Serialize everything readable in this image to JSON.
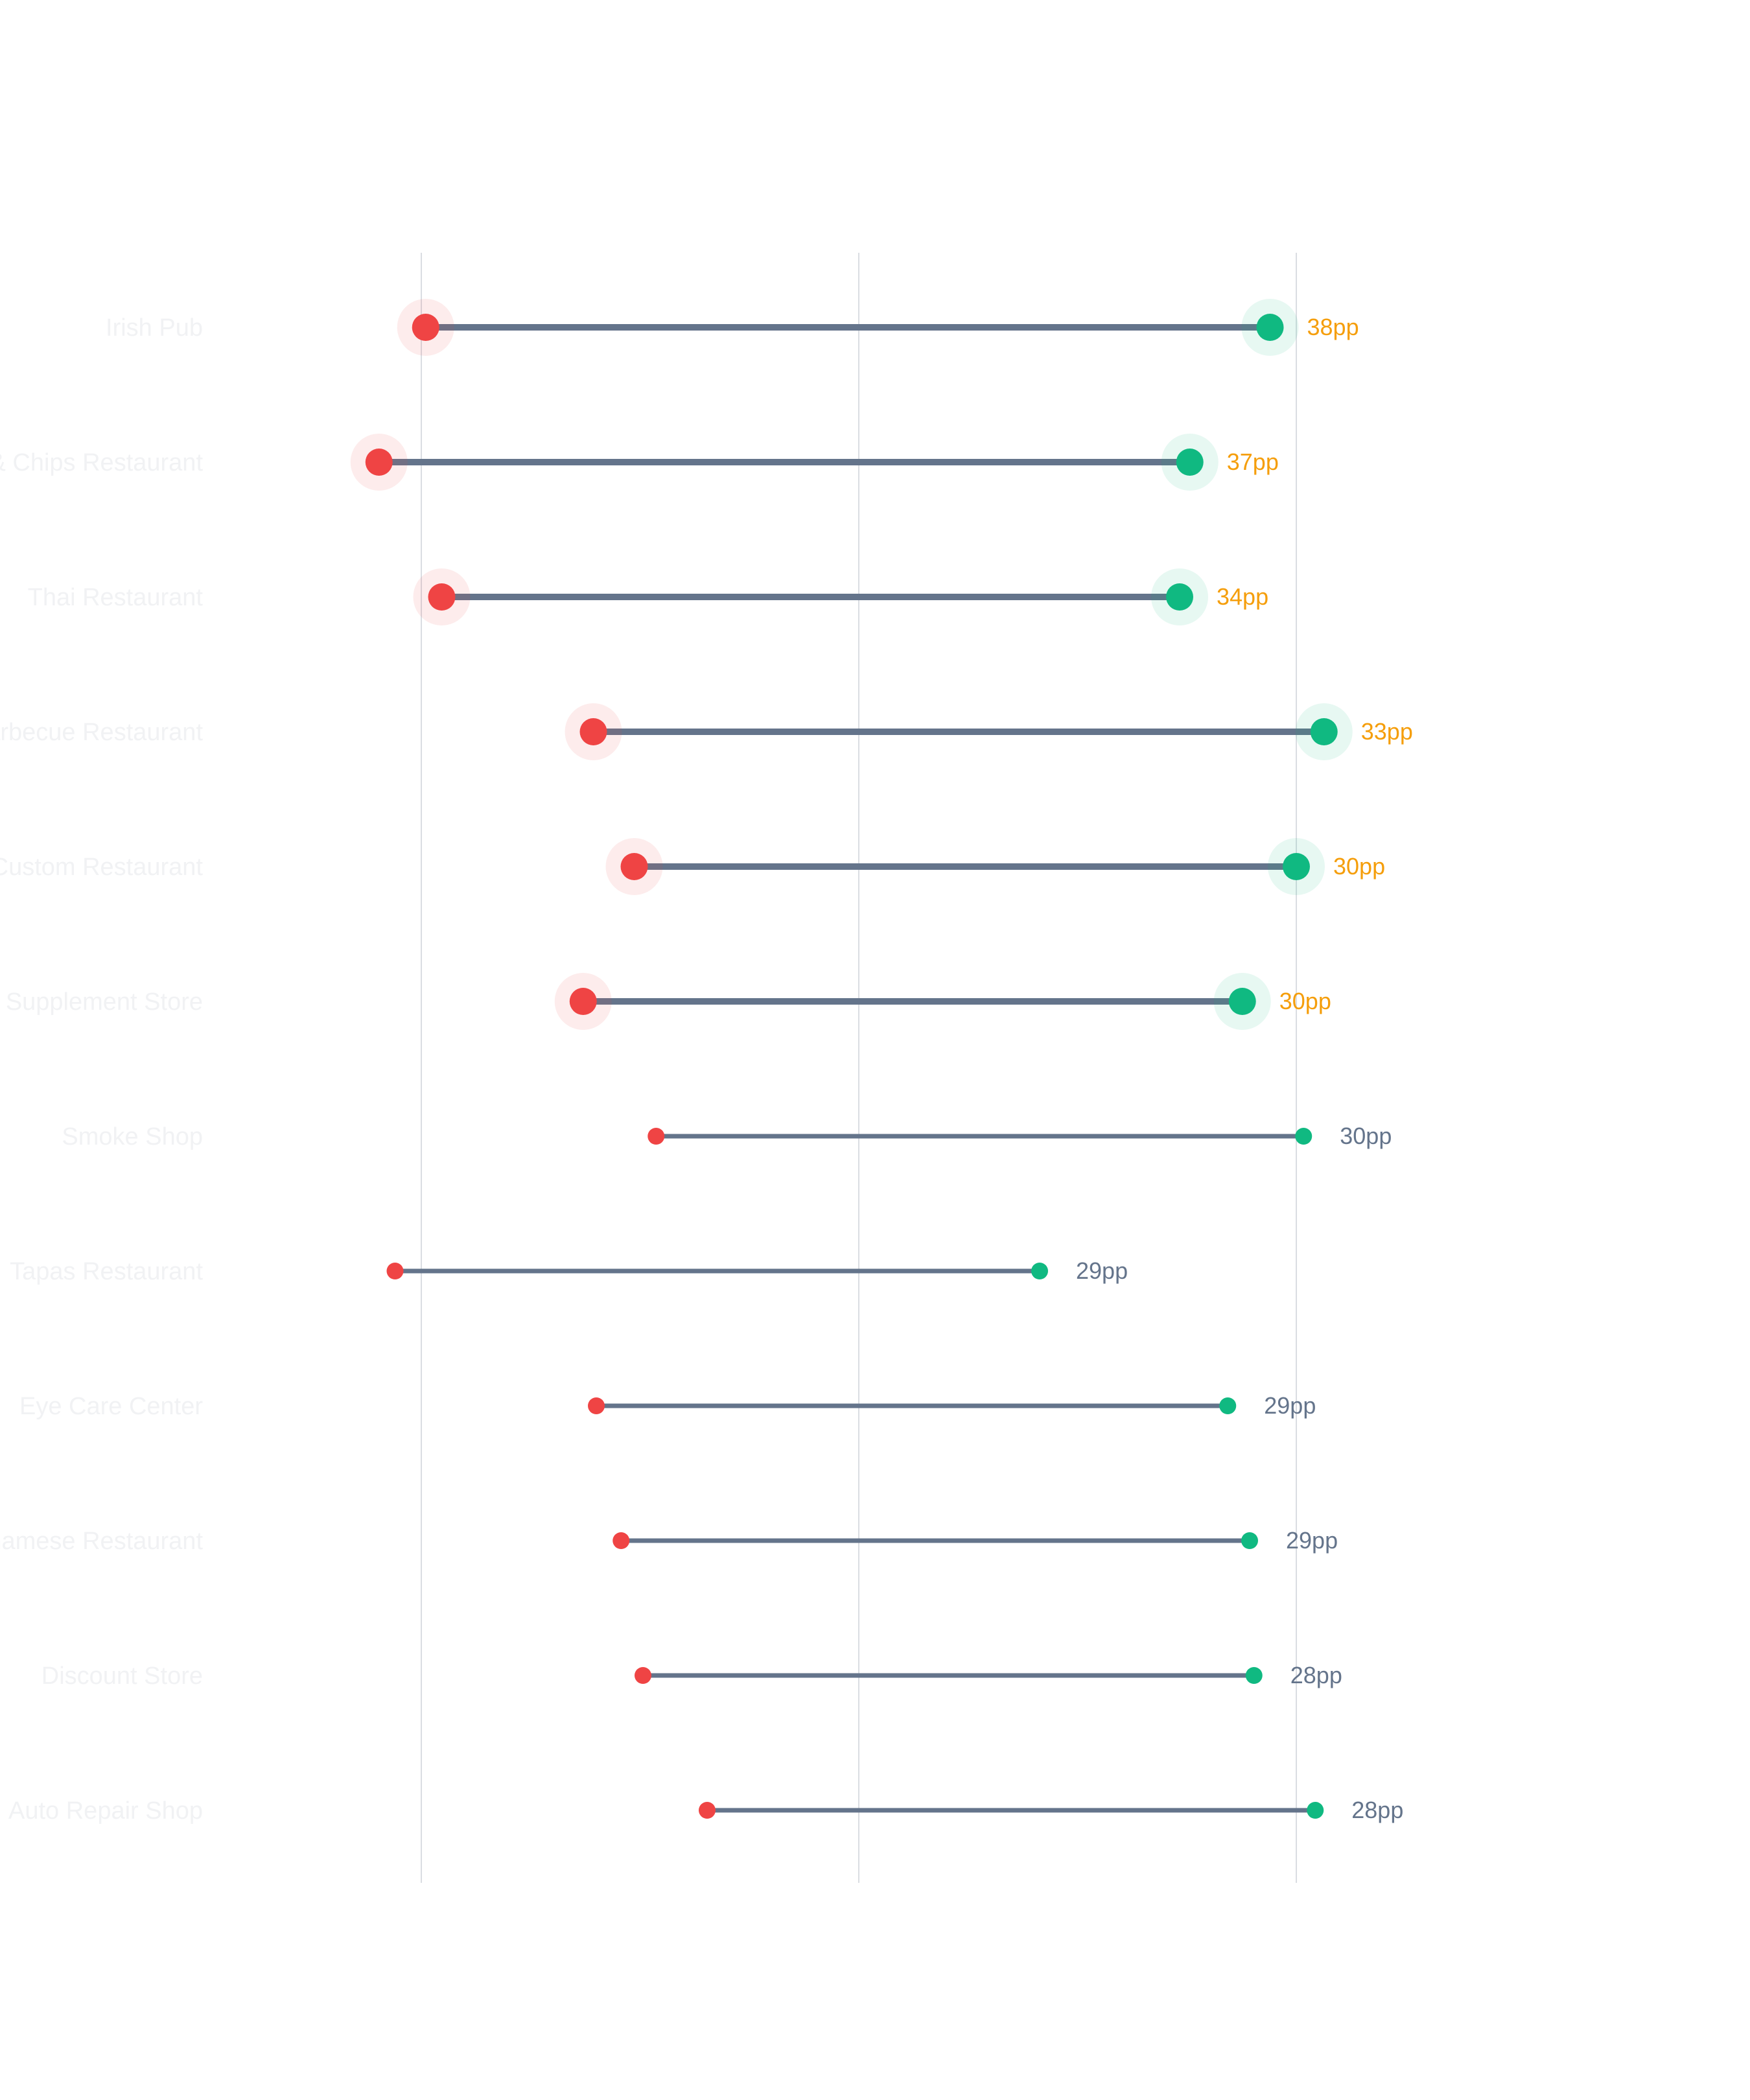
{
  "chart_data": {
    "type": "dumbbell",
    "title": "",
    "xlabel": "",
    "ylabel": "",
    "xlim": [
      0,
      1
    ],
    "grid": {
      "vertical": true,
      "gridlines_at": [
        0.2,
        0.5,
        0.8
      ]
    },
    "colors": {
      "low": "#ef4444",
      "high": "#10b981",
      "connector": "#64748b",
      "highlight_label": "#f59e0b",
      "normal_label": "#64748b",
      "grid": "#dadde2"
    },
    "rows": [
      {
        "category": "Irish Pub",
        "low": 0.203,
        "high": 0.782,
        "diff_label": "38pp",
        "highlight": true
      },
      {
        "category": "Fish & Chips Restaurant",
        "low": 0.171,
        "high": 0.727,
        "diff_label": "37pp",
        "highlight": true
      },
      {
        "category": "Thai Restaurant",
        "low": 0.214,
        "high": 0.72,
        "diff_label": "34pp",
        "highlight": true
      },
      {
        "category": "Barbecue Restaurant",
        "low": 0.318,
        "high": 0.819,
        "diff_label": "33pp",
        "highlight": true
      },
      {
        "category": "Custom Restaurant",
        "low": 0.346,
        "high": 0.8,
        "diff_label": "30pp",
        "highlight": true
      },
      {
        "category": "Supplement Store",
        "low": 0.311,
        "high": 0.763,
        "diff_label": "30pp",
        "highlight": true
      },
      {
        "category": "Smoke Shop",
        "low": 0.361,
        "high": 0.805,
        "diff_label": "30pp",
        "highlight": false
      },
      {
        "category": "Tapas Restaurant",
        "low": 0.182,
        "high": 0.624,
        "diff_label": "29pp",
        "highlight": false
      },
      {
        "category": "Eye Care Center",
        "low": 0.32,
        "high": 0.753,
        "diff_label": "29pp",
        "highlight": false
      },
      {
        "category": "Vietnamese Restaurant",
        "low": 0.337,
        "high": 0.768,
        "diff_label": "29pp",
        "highlight": false
      },
      {
        "category": "Discount Store",
        "low": 0.352,
        "high": 0.771,
        "diff_label": "28pp",
        "highlight": false
      },
      {
        "category": "Auto Repair Shop",
        "low": 0.396,
        "high": 0.813,
        "diff_label": "28pp",
        "highlight": false
      }
    ]
  }
}
